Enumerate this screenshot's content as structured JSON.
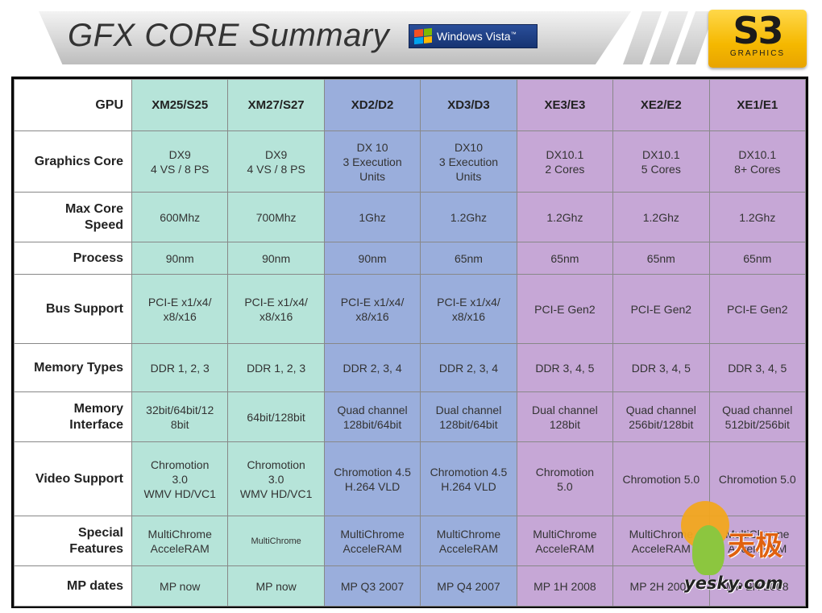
{
  "header": {
    "title": "GFX CORE Summary",
    "vista_badge": "Windows Vista",
    "vista_tm": "™",
    "logo_main": "S3",
    "logo_sub": "GRAPHICS"
  },
  "table": {
    "corner_label": "GPU",
    "columns": [
      "XM25/S25",
      "XM27/S27",
      "XD2/D2",
      "XD3/D3",
      "XE3/E3",
      "XE2/E2",
      "XE1/E1"
    ],
    "rows": [
      {
        "label": "Graphics Core",
        "cells": [
          "DX9\n4 VS / 8 PS",
          "DX9\n4 VS / 8 PS",
          "DX 10\n3 Execution\nUnits",
          "DX10\n3 Execution\nUnits",
          "DX10.1\n2 Cores",
          "DX10.1\n5 Cores",
          "DX10.1\n8+ Cores"
        ]
      },
      {
        "label": "Max Core\nSpeed",
        "cells": [
          "600Mhz",
          "700Mhz",
          "1Ghz",
          "1.2Ghz",
          "1.2Ghz",
          "1.2Ghz",
          "1.2Ghz"
        ]
      },
      {
        "label": "Process",
        "cells": [
          "90nm",
          "90nm",
          "90nm",
          "65nm",
          "65nm",
          "65nm",
          "65nm"
        ]
      },
      {
        "label": "Bus Support",
        "cells": [
          "PCI-E x1/x4/\nx8/x16",
          "PCI-E x1/x4/\nx8/x16",
          "PCI-E x1/x4/\nx8/x16",
          "PCI-E x1/x4/\nx8/x16",
          "PCI-E Gen2",
          "PCI-E Gen2",
          "PCI-E Gen2"
        ]
      },
      {
        "label": "Memory Types",
        "cells": [
          "DDR 1, 2, 3",
          "DDR 1, 2, 3",
          "DDR 2, 3, 4",
          "DDR 2, 3, 4",
          "DDR 3, 4, 5",
          "DDR 3, 4, 5",
          "DDR 3, 4, 5"
        ]
      },
      {
        "label": "Memory\nInterface",
        "cells": [
          "32bit/64bit/12\n8bit",
          "64bit/128bit",
          "Quad channel\n128bit/64bit",
          "Dual channel\n128bit/64bit",
          "Dual channel\n128bit",
          "Quad channel\n256bit/128bit",
          "Quad channel\n512bit/256bit"
        ]
      },
      {
        "label": "Video Support",
        "cells": [
          "Chromotion\n3.0\nWMV HD/VC1",
          "Chromotion\n3.0\nWMV HD/VC1",
          "Chromotion 4.5\nH.264 VLD",
          "Chromotion 4.5\nH.264 VLD",
          "Chromotion\n5.0",
          "Chromotion 5.0",
          "Chromotion 5.0"
        ]
      },
      {
        "label": "Special\nFeatures",
        "cells": [
          "MultiChrome\nAcceleRAM",
          "MultiChrome",
          "MultiChrome\nAcceleRAM",
          "MultiChrome\nAcceleRAM",
          "MultiChrome\nAcceleRAM",
          "MultiChrome\nAcceleRAM",
          "MultiChrome\nAcceleRAM"
        ]
      },
      {
        "label": "MP dates",
        "cells": [
          "MP now",
          "MP now",
          "MP Q3 2007",
          "MP Q4 2007",
          "MP 1H 2008",
          "MP 2H 2008",
          "MP 2H 2008"
        ]
      }
    ]
  },
  "watermark": {
    "cn": "天极",
    "url": "yesky.com"
  },
  "colors": {
    "teal": "#b6e4d9",
    "blue": "#9aaedc",
    "purple": "#c6a7d6"
  }
}
